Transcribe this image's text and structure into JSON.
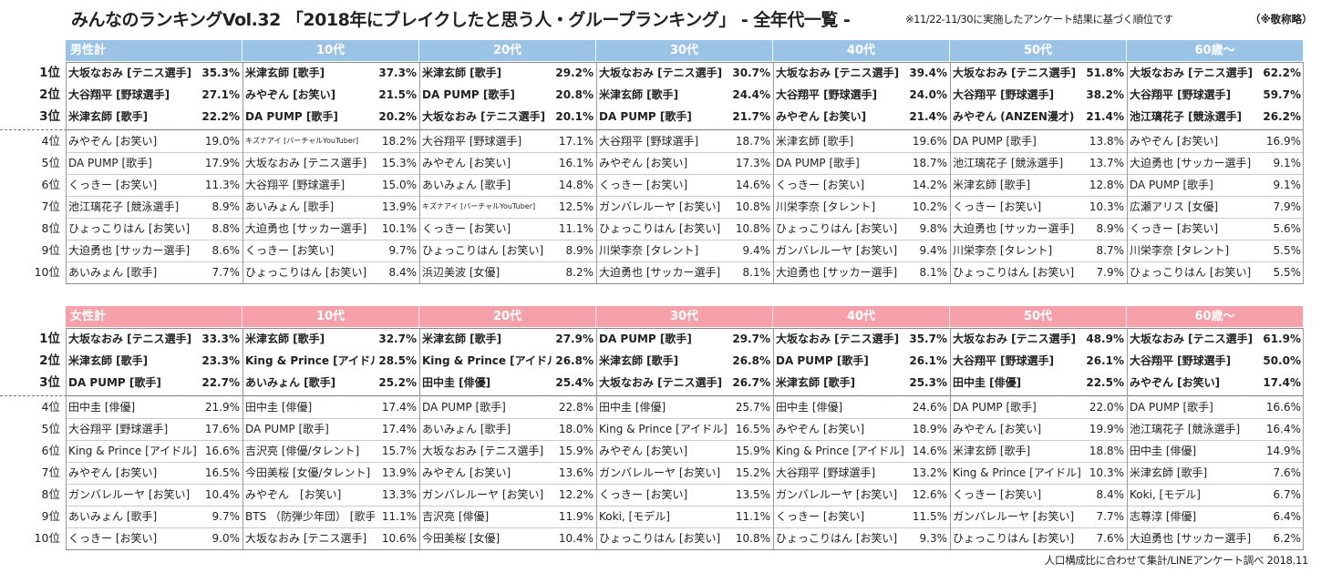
{
  "title": "みんなのランキングVol.32 「2018年にブレイクしたと思う人・グループランキング」 - 全年代一覧 -",
  "note": "※11/22-11/30に実施したアンケート結果に基づく順位です",
  "note_honorific": "（※敬称略）",
  "footer": "人口構成比に合わせて集計/LINEアンケート調べ 2018.11",
  "rank_labels": [
    "1位",
    "2位",
    "3位",
    "4位",
    "5位",
    "6位",
    "7位",
    "8位",
    "9位",
    "10位"
  ],
  "colors": {
    "male_header": "#9bc3e6",
    "female_header": "#f6a0aa"
  },
  "male": {
    "headers": [
      "男性計",
      "10代",
      "20代",
      "30代",
      "40代",
      "50代",
      "60歳～"
    ],
    "columns": [
      [
        [
          "大坂なおみ [テニス選手]",
          "35.3%"
        ],
        [
          "大谷翔平 [野球選手]",
          "27.1%"
        ],
        [
          "米津玄師 [歌手]",
          "22.2%"
        ],
        [
          "みやぞん [お笑い]",
          "19.0%"
        ],
        [
          "DA PUMP [歌手]",
          "17.9%"
        ],
        [
          "くっきー [お笑い]",
          "11.3%"
        ],
        [
          "池江璃花子 [競泳選手]",
          "8.9%"
        ],
        [
          "ひょっこりはん [お笑い]",
          "8.8%"
        ],
        [
          "大迫勇也 [サッカー選手]",
          "8.6%"
        ],
        [
          "あいみょん [歌手]",
          "7.7%"
        ]
      ],
      [
        [
          "米津玄師 [歌手]",
          "37.3%"
        ],
        [
          "みやぞん [お笑い]",
          "21.5%"
        ],
        [
          "DA PUMP [歌手]",
          "20.2%"
        ],
        [
          "キズナアイ [バーチャルYouTuber]",
          "18.2%"
        ],
        [
          "大坂なおみ [テニス選手]",
          "15.3%"
        ],
        [
          "大谷翔平 [野球選手]",
          "15.0%"
        ],
        [
          "あいみょん [歌手]",
          "13.9%"
        ],
        [
          "大迫勇也 [サッカー選手]",
          "10.1%"
        ],
        [
          "くっきー [お笑い]",
          "9.7%"
        ],
        [
          "ひょっこりはん [お笑い]",
          "8.4%"
        ]
      ],
      [
        [
          "米津玄師 [歌手]",
          "29.2%"
        ],
        [
          "DA PUMP [歌手]",
          "20.8%"
        ],
        [
          "大坂なおみ [テニス選手]",
          "20.1%"
        ],
        [
          "大谷翔平 [野球選手]",
          "17.1%"
        ],
        [
          "みやぞん [お笑い]",
          "16.1%"
        ],
        [
          "あいみょん [歌手]",
          "14.8%"
        ],
        [
          "キズナアイ [バーチャルYouTuber]",
          "12.5%"
        ],
        [
          "くっきー [お笑い]",
          "11.1%"
        ],
        [
          "ひょっこりはん [お笑い]",
          "8.9%"
        ],
        [
          "浜辺美波 [女優]",
          "8.2%"
        ]
      ],
      [
        [
          "大坂なおみ [テニス選手]",
          "30.7%"
        ],
        [
          "米津玄師 [歌手]",
          "24.4%"
        ],
        [
          "DA PUMP [歌手]",
          "21.7%"
        ],
        [
          "大谷翔平 [野球選手]",
          "18.7%"
        ],
        [
          "みやぞん [お笑い]",
          "17.3%"
        ],
        [
          "くっきー [お笑い]",
          "14.6%"
        ],
        [
          "ガンバレルーヤ [お笑い]",
          "10.8%"
        ],
        [
          "ひょっこりはん [お笑い]",
          "10.8%"
        ],
        [
          "川栄李奈 [タレント]",
          "9.4%"
        ],
        [
          "大迫勇也 [サッカー選手]",
          "8.1%"
        ]
      ],
      [
        [
          "大坂なおみ [テニス選手]",
          "39.4%"
        ],
        [
          "大谷翔平 [野球選手]",
          "24.0%"
        ],
        [
          "みやぞん [お笑い]",
          "21.4%"
        ],
        [
          "米津玄師 [歌手]",
          "19.6%"
        ],
        [
          "DA PUMP [歌手]",
          "18.7%"
        ],
        [
          "くっきー [お笑い]",
          "14.2%"
        ],
        [
          "川栄李奈 [タレント]",
          "10.2%"
        ],
        [
          "ひょっこりはん [お笑い]",
          "9.8%"
        ],
        [
          "ガンバレルーヤ [お笑い]",
          "9.4%"
        ],
        [
          "大迫勇也 [サッカー選手]",
          "8.1%"
        ]
      ],
      [
        [
          "大坂なおみ [テニス選手]",
          "51.8%"
        ],
        [
          "大谷翔平 [野球選手]",
          "38.2%"
        ],
        [
          "みやぞん (ANZEN漫才)",
          "21.4%"
        ],
        [
          "DA PUMP [歌手]",
          "13.8%"
        ],
        [
          "池江璃花子 [競泳選手]",
          "13.7%"
        ],
        [
          "米津玄師 [歌手]",
          "12.8%"
        ],
        [
          "くっきー [お笑い]",
          "10.3%"
        ],
        [
          "大迫勇也 [サッカー選手]",
          "8.9%"
        ],
        [
          "川栄李奈 [タレント]",
          "8.7%"
        ],
        [
          "ひょっこりはん [お笑い]",
          "7.9%"
        ]
      ],
      [
        [
          "大坂なおみ [テニス選手]",
          "62.2%"
        ],
        [
          "大谷翔平 [野球選手]",
          "59.7%"
        ],
        [
          "池江璃花子 [競泳選手]",
          "26.2%"
        ],
        [
          "みやぞん [お笑い]",
          "16.9%"
        ],
        [
          "大迫勇也 [サッカー選手]",
          "9.1%"
        ],
        [
          "DA PUMP [歌手]",
          "9.1%"
        ],
        [
          "広瀬アリス [女優]",
          "7.9%"
        ],
        [
          "くっきー [お笑い]",
          "5.6%"
        ],
        [
          "川栄李奈 [タレント]",
          "5.5%"
        ],
        [
          "ひょっこりはん [お笑い]",
          "5.5%"
        ]
      ]
    ]
  },
  "female": {
    "headers": [
      "女性計",
      "10代",
      "20代",
      "30代",
      "40代",
      "50代",
      "60歳～"
    ],
    "columns": [
      [
        [
          "大坂なおみ [テニス選手]",
          "33.3%"
        ],
        [
          "米津玄師 [歌手]",
          "23.3%"
        ],
        [
          "DA PUMP [歌手]",
          "22.7%"
        ],
        [
          "田中圭 [俳優]",
          "21.9%"
        ],
        [
          "大谷翔平 [野球選手]",
          "17.6%"
        ],
        [
          "King & Prince [アイドル]",
          "16.6%"
        ],
        [
          "みやぞん [お笑い]",
          "16.5%"
        ],
        [
          "ガンバレルーヤ [お笑い]",
          "10.4%"
        ],
        [
          "あいみょん [歌手]",
          "9.7%"
        ],
        [
          "くっきー [お笑い]",
          "9.0%"
        ]
      ],
      [
        [
          "米津玄師 [歌手]",
          "32.7%"
        ],
        [
          "King & Prince [アイドル]",
          "28.5%"
        ],
        [
          "あいみょん [歌手]",
          "25.2%"
        ],
        [
          "田中圭 [俳優]",
          "17.4%"
        ],
        [
          "DA PUMP [歌手]",
          "17.4%"
        ],
        [
          "吉沢亮 [俳優/タレント]",
          "15.7%"
        ],
        [
          "今田美桜 [女優/タレント]",
          "13.9%"
        ],
        [
          "みやぞん　[お笑い]",
          "13.3%"
        ],
        [
          "BTS （防弾少年団） [歌手]",
          "11.1%"
        ],
        [
          "大坂なおみ [テニス選手]",
          "10.6%"
        ]
      ],
      [
        [
          "米津玄師 [歌手]",
          "27.9%"
        ],
        [
          "King & Prince [アイドル]",
          "26.8%"
        ],
        [
          "田中圭 [俳優]",
          "25.4%"
        ],
        [
          "DA PUMP [歌手]",
          "22.8%"
        ],
        [
          "あいみょん [歌手]",
          "18.0%"
        ],
        [
          "大坂なおみ [テニス選手]",
          "15.9%"
        ],
        [
          "みやぞん [お笑い]",
          "13.6%"
        ],
        [
          "ガンバレルーヤ [お笑い]",
          "12.2%"
        ],
        [
          "吉沢亮 [俳優]",
          "11.9%"
        ],
        [
          "今田美桜 [女優]",
          "10.4%"
        ]
      ],
      [
        [
          "DA PUMP [歌手]",
          "29.7%"
        ],
        [
          "米津玄師 [歌手]",
          "26.8%"
        ],
        [
          "大坂なおみ [テニス選手]",
          "26.7%"
        ],
        [
          "田中圭 [俳優]",
          "25.7%"
        ],
        [
          "King & Prince [アイドル]",
          "16.5%"
        ],
        [
          "みやぞん [お笑い]",
          "15.9%"
        ],
        [
          "ガンバレルーヤ [お笑い]",
          "15.2%"
        ],
        [
          "くっきー [お笑い]",
          "13.5%"
        ],
        [
          "Koki, [モデル]",
          "11.1%"
        ],
        [
          "ひょっこりはん [お笑い]",
          "10.8%"
        ]
      ],
      [
        [
          "大坂なおみ [テニス選手]",
          "35.7%"
        ],
        [
          "DA PUMP [歌手]",
          "26.1%"
        ],
        [
          "米津玄師 [歌手]",
          "25.3%"
        ],
        [
          "田中圭 [俳優]",
          "24.6%"
        ],
        [
          "みやぞん [お笑い]",
          "18.9%"
        ],
        [
          "King & Prince [アイドル]",
          "14.6%"
        ],
        [
          "大谷翔平 [野球選手]",
          "13.2%"
        ],
        [
          "ガンバレルーヤ [お笑い]",
          "12.6%"
        ],
        [
          "くっきー [お笑い]",
          "11.5%"
        ],
        [
          "ひょっこりはん [お笑い]",
          "9.3%"
        ]
      ],
      [
        [
          "大坂なおみ [テニス選手]",
          "48.9%"
        ],
        [
          "大谷翔平 [野球選手]",
          "26.1%"
        ],
        [
          "田中圭 [俳優]",
          "22.5%"
        ],
        [
          "DA PUMP [歌手]",
          "22.0%"
        ],
        [
          "みやぞん [お笑い]",
          "19.9%"
        ],
        [
          "米津玄師 [歌手]",
          "18.8%"
        ],
        [
          "King & Prince [アイドル]",
          "10.3%"
        ],
        [
          "くっきー [お笑い]",
          "8.4%"
        ],
        [
          "ガンバレルーヤ [お笑い]",
          "7.7%"
        ],
        [
          "ひょっこりはん [お笑い]",
          "7.6%"
        ]
      ],
      [
        [
          "大坂なおみ [テニス選手]",
          "61.9%"
        ],
        [
          "大谷翔平 [野球選手]",
          "50.0%"
        ],
        [
          "みやぞん [お笑い]",
          "17.4%"
        ],
        [
          "DA PUMP [歌手]",
          "16.6%"
        ],
        [
          "池江璃花子 [競泳選手]",
          "16.4%"
        ],
        [
          "田中圭 [俳優]",
          "14.9%"
        ],
        [
          "米津玄師 [歌手]",
          "7.6%"
        ],
        [
          "Koki, [モデル]",
          "6.7%"
        ],
        [
          "志尊淳 [俳優]",
          "6.4%"
        ],
        [
          "大迫勇也 [サッカー選手]",
          "6.2%"
        ]
      ]
    ]
  }
}
